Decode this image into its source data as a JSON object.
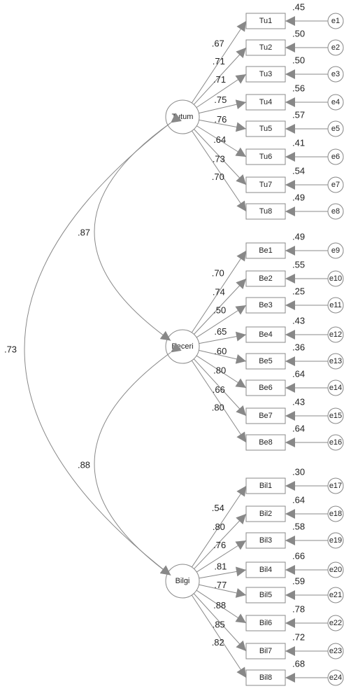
{
  "factors": [
    {
      "name": "Tutum",
      "indicators": [
        {
          "label": "Tu1",
          "loading": ".67",
          "r2": ".45",
          "error": "e1"
        },
        {
          "label": "Tu2",
          "loading": ".71",
          "r2": ".50",
          "error": "e2"
        },
        {
          "label": "Tu3",
          "loading": ".71",
          "r2": ".50",
          "error": "e3"
        },
        {
          "label": "Tu4",
          "loading": ".75",
          "r2": ".56",
          "error": "e4"
        },
        {
          "label": "Tu5",
          "loading": ".76",
          "r2": ".57",
          "error": "e5"
        },
        {
          "label": "Tu6",
          "loading": ".64",
          "r2": ".41",
          "error": "e6"
        },
        {
          "label": "Tu7",
          "loading": ".73",
          "r2": ".54",
          "error": "e7"
        },
        {
          "label": "Tu8",
          "loading": ".70",
          "r2": ".49",
          "error": "e8"
        }
      ]
    },
    {
      "name": "Beceri",
      "indicators": [
        {
          "label": "Be1",
          "loading": ".70",
          "r2": ".49",
          "error": "e9"
        },
        {
          "label": "Be2",
          "loading": ".74",
          "r2": ".55",
          "error": "e10"
        },
        {
          "label": "Be3",
          "loading": ".50",
          "r2": ".25",
          "error": "e11"
        },
        {
          "label": "Be4",
          "loading": ".65",
          "r2": ".43",
          "error": "e12"
        },
        {
          "label": "Be5",
          "loading": ".60",
          "r2": ".36",
          "error": "e13"
        },
        {
          "label": "Be6",
          "loading": ".80",
          "r2": ".64",
          "error": "e14"
        },
        {
          "label": "Be7",
          "loading": ".66",
          "r2": ".43",
          "error": "e15"
        },
        {
          "label": "Be8",
          "loading": ".80",
          "r2": ".64",
          "error": "e16"
        }
      ]
    },
    {
      "name": "Bilgi",
      "indicators": [
        {
          "label": "Bil1",
          "loading": ".54",
          "r2": ".30",
          "error": "e17"
        },
        {
          "label": "Bil2",
          "loading": ".80",
          "r2": ".64",
          "error": "e18"
        },
        {
          "label": "Bil3",
          "loading": ".76",
          "r2": ".58",
          "error": "e19"
        },
        {
          "label": "Bil4",
          "loading": ".81",
          "r2": ".66",
          "error": "e20"
        },
        {
          "label": "Bil5",
          "loading": ".77",
          "r2": ".59",
          "error": "e21"
        },
        {
          "label": "Bil6",
          "loading": ".88",
          "r2": ".78",
          "error": "e22"
        },
        {
          "label": "Bil7",
          "loading": ".85",
          "r2": ".72",
          "error": "e23"
        },
        {
          "label": "Bil8",
          "loading": ".82",
          "r2": ".68",
          "error": "e24"
        }
      ]
    }
  ],
  "correlations": [
    {
      "from": "Tutum",
      "to": "Beceri",
      "label": ".87"
    },
    {
      "from": "Beceri",
      "to": "Bilgi",
      "label": ".88"
    },
    {
      "from": "Tutum",
      "to": "Bilgi",
      "label": ".73"
    }
  ]
}
